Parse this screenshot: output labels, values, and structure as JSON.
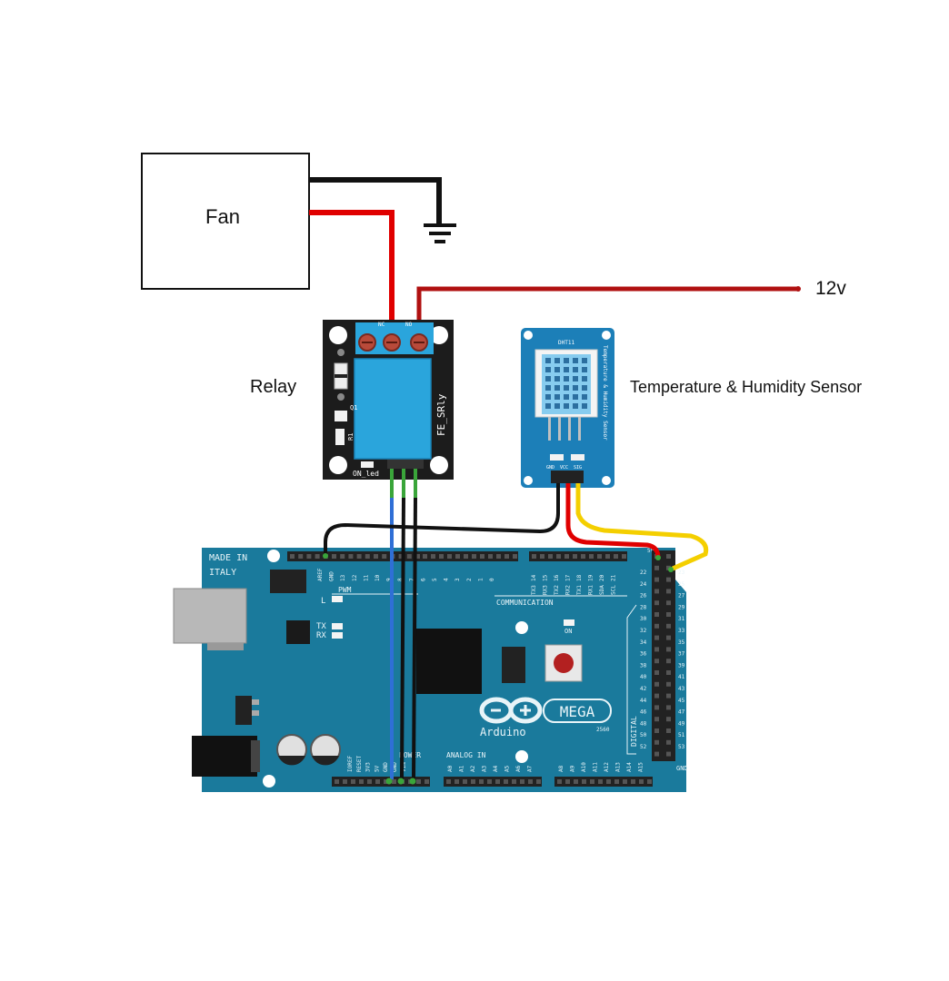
{
  "fan": {
    "label": "Fan"
  },
  "supply": {
    "label": "12v"
  },
  "relay": {
    "label": "Relay",
    "silk_name": "FE_SRly",
    "led_label": "ON_led",
    "nc": "NC",
    "no": "NO",
    "q1": "Q1",
    "r1": "R1"
  },
  "sensor": {
    "label": "Temperature & Humidity Sensor",
    "model": "DHT11",
    "pins": [
      "GND",
      "VCC",
      "SIG"
    ]
  },
  "arduino": {
    "made_in": "MADE IN",
    "italy": "ITALY",
    "logo_text": "Arduino",
    "mega_text": "MEGA",
    "model": "2560",
    "pwm": "PWM",
    "communication": "COMMUNICATION",
    "power": "POWER",
    "analog_in": "ANALOG IN",
    "digital": "DIGITAL",
    "led_l": "L",
    "led_tx": "TX",
    "led_rx": "RX",
    "led_on": "ON",
    "gnd": "GND",
    "five_v": "5V",
    "top_header": [
      "AREF",
      "GND",
      "13",
      "12",
      "11",
      "10",
      "9",
      "8",
      "7",
      "6",
      "5",
      "4",
      "3",
      "2",
      "1",
      "0"
    ],
    "comm_header": [
      "14",
      "15",
      "16",
      "17",
      "18",
      "19",
      "20",
      "21"
    ],
    "comm_names": [
      "TX3",
      "RX3",
      "TX2",
      "RX2",
      "TX1",
      "RX1",
      "SDA",
      "SCL"
    ],
    "power_header": [
      "IOREF",
      "RESET",
      "3V3",
      "5V",
      "GND",
      "GND",
      "VIN"
    ],
    "analog_header_1": [
      "A0",
      "A1",
      "A2",
      "A3",
      "A4",
      "A5",
      "A6",
      "A7"
    ],
    "analog_header_2": [
      "A8",
      "A9",
      "A10",
      "A11",
      "A12",
      "A13",
      "A14",
      "A15"
    ],
    "digital_left": [
      "22",
      "24",
      "26",
      "28",
      "30",
      "32",
      "34",
      "36",
      "38",
      "40",
      "42",
      "44",
      "46",
      "48",
      "50",
      "52"
    ],
    "digital_right": [
      "23",
      "25",
      "27",
      "29",
      "31",
      "33",
      "35",
      "37",
      "39",
      "41",
      "43",
      "45",
      "47",
      "49",
      "51",
      "53"
    ]
  },
  "colors": {
    "board": "#1a7a9c",
    "board_dark": "#12637f",
    "relay_board": "#1c1c1c",
    "relay_blue": "#2aa5dc",
    "sensor_board": "#1c7fb8",
    "wire_red": "#e00000",
    "wire_darkred": "#b01010",
    "wire_black": "#111111",
    "wire_yellow": "#f4cf00",
    "wire_blue": "#2f6fd6",
    "wire_green": "#3aa53a"
  }
}
